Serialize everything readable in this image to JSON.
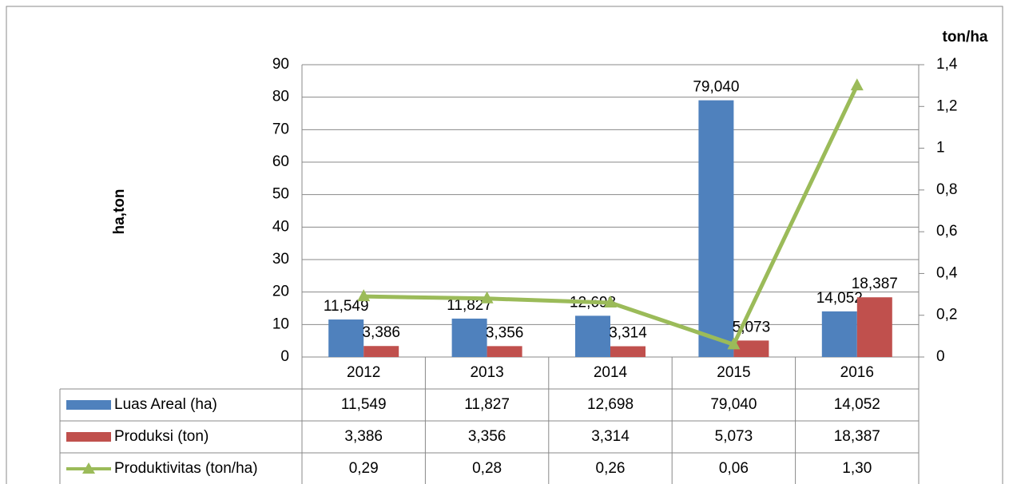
{
  "chart_data": {
    "type": "bar",
    "y_axis_label": "ha,ton",
    "y2_axis_label": "ton/ha",
    "categories": [
      "2012",
      "2013",
      "2014",
      "2015",
      "2016"
    ],
    "series": [
      {
        "name": "Luas Areal (ha)",
        "type": "bar",
        "color": "#4f81bd",
        "values": [
          11.549,
          11.827,
          12.698,
          79.04,
          14.052
        ],
        "value_labels": [
          "11,549",
          "11,827",
          "12,698",
          "79,040",
          "14,052"
        ]
      },
      {
        "name": "Produksi (ton)",
        "type": "bar",
        "color": "#c0504d",
        "values": [
          3.386,
          3.356,
          3.314,
          5.073,
          18.387
        ],
        "value_labels": [
          "3,386",
          "3,356",
          "3,314",
          "5,073",
          "18,387"
        ]
      },
      {
        "name": "Produktivitas (ton/ha)",
        "type": "line",
        "axis": "y2",
        "color": "#9bbb59",
        "values": [
          0.29,
          0.28,
          0.26,
          0.06,
          1.3
        ],
        "value_labels": [
          "0,29",
          "0,28",
          "0,26",
          "0,06",
          "1,30"
        ]
      }
    ],
    "ylim": [
      0,
      90
    ],
    "yticks": [
      0,
      10,
      20,
      30,
      40,
      50,
      60,
      70,
      80,
      90
    ],
    "y2lim": [
      0,
      1.4
    ],
    "y2ticks": [
      0,
      {
        "value": 0.2,
        "label": "0,2"
      },
      {
        "value": 0.4,
        "label": "0,4"
      },
      {
        "value": 0.6,
        "label": "0,6"
      },
      {
        "value": 0.8,
        "label": "0,8"
      },
      1,
      {
        "value": 1.2,
        "label": "1,2"
      },
      {
        "value": 1.4,
        "label": "1,4"
      }
    ],
    "grid": true,
    "data_table": true
  }
}
